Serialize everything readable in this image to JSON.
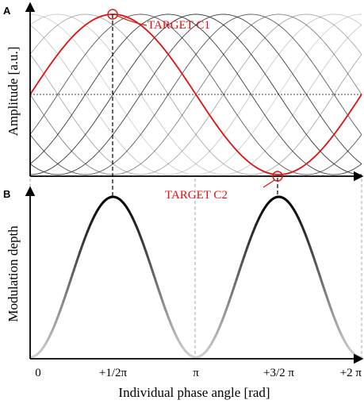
{
  "chart_data": [
    {
      "panel": "A",
      "type": "line",
      "title": "",
      "ylabel": "Amplitude [a.u.]",
      "xlim": [
        0,
        6.283
      ],
      "ylim": [
        -1,
        1
      ],
      "grid": false,
      "background_series": {
        "function": "sine",
        "count": 12,
        "phase_offsets": [
          0,
          0.524,
          1.047,
          1.571,
          2.094,
          2.618,
          3.142,
          3.665,
          4.189,
          4.712,
          5.236,
          5.76
        ],
        "color": "#000000"
      },
      "series": [
        {
          "function": "sine",
          "phase": 0,
          "color": "#e01010"
        }
      ],
      "reference_line": {
        "y": 0,
        "style": "dotted"
      },
      "annotations": [
        {
          "label": "TARGET C1",
          "x": 1.571,
          "y": 1,
          "color": "#e01010"
        },
        {
          "label": "TARGET C2",
          "x": 4.712,
          "y": -1,
          "color": "#e01010"
        }
      ]
    },
    {
      "panel": "B",
      "type": "line",
      "title": "",
      "xlabel": "Individual phase angle [rad]",
      "ylabel": "Modulation depth",
      "xlim": [
        0,
        6.283
      ],
      "ylim": [
        0,
        1
      ],
      "grid": false,
      "x_ticks": [
        0,
        1.571,
        3.142,
        4.712,
        6.283
      ],
      "x_tick_labels": [
        "0",
        "+1/2π",
        "π",
        "+3/2 π",
        "+2 π"
      ],
      "series": [
        {
          "function": "sin^2",
          "color_gradient": [
            "#d0d0d0",
            "#000000"
          ]
        }
      ]
    }
  ]
}
